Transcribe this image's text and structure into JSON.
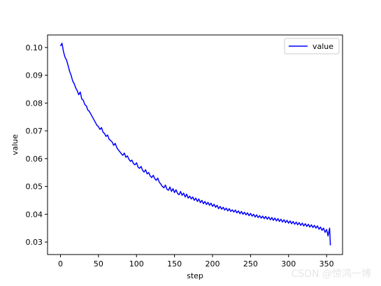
{
  "chart_data": {
    "type": "line",
    "title": "",
    "xlabel": "step",
    "ylabel": "value",
    "xlim": [
      -17,
      371
    ],
    "ylim": [
      0.0255,
      0.1045
    ],
    "xticks": [
      0,
      50,
      100,
      150,
      200,
      250,
      300,
      350
    ],
    "yticks": [
      0.03,
      0.04,
      0.05,
      0.06,
      0.07,
      0.08,
      0.09,
      0.1
    ],
    "ytick_labels": [
      "0.03",
      "0.04",
      "0.05",
      "0.06",
      "0.07",
      "0.08",
      "0.09",
      "0.10"
    ],
    "legend": {
      "placement": "top-right"
    },
    "grid": false,
    "series": [
      {
        "name": "value",
        "color": "#0000ff",
        "points": [
          [
            0,
            0.1005
          ],
          [
            2,
            0.1015
          ],
          [
            4,
            0.0985
          ],
          [
            6,
            0.0965
          ],
          [
            8,
            0.0955
          ],
          [
            10,
            0.0935
          ],
          [
            12,
            0.0915
          ],
          [
            14,
            0.09
          ],
          [
            16,
            0.088
          ],
          [
            18,
            0.087
          ],
          [
            20,
            0.0855
          ],
          [
            22,
            0.0845
          ],
          [
            24,
            0.083
          ],
          [
            26,
            0.084
          ],
          [
            28,
            0.0815
          ],
          [
            30,
            0.081
          ],
          [
            32,
            0.0795
          ],
          [
            34,
            0.079
          ],
          [
            36,
            0.0775
          ],
          [
            38,
            0.077
          ],
          [
            40,
            0.076
          ],
          [
            42,
            0.075
          ],
          [
            44,
            0.074
          ],
          [
            46,
            0.073
          ],
          [
            48,
            0.072
          ],
          [
            50,
            0.0715
          ],
          [
            52,
            0.0705
          ],
          [
            54,
            0.0712
          ],
          [
            56,
            0.0695
          ],
          [
            58,
            0.069
          ],
          [
            60,
            0.068
          ],
          [
            62,
            0.0685
          ],
          [
            64,
            0.067
          ],
          [
            66,
            0.0665
          ],
          [
            68,
            0.066
          ],
          [
            70,
            0.0648
          ],
          [
            72,
            0.0655
          ],
          [
            74,
            0.064
          ],
          [
            76,
            0.0632
          ],
          [
            78,
            0.0625
          ],
          [
            80,
            0.0618
          ],
          [
            82,
            0.0612
          ],
          [
            84,
            0.062
          ],
          [
            86,
            0.0605
          ],
          [
            88,
            0.061
          ],
          [
            90,
            0.0598
          ],
          [
            92,
            0.059
          ],
          [
            94,
            0.0595
          ],
          [
            96,
            0.0582
          ],
          [
            98,
            0.0578
          ],
          [
            100,
            0.0585
          ],
          [
            102,
            0.057
          ],
          [
            104,
            0.0565
          ],
          [
            106,
            0.0572
          ],
          [
            108,
            0.0558
          ],
          [
            110,
            0.0552
          ],
          [
            112,
            0.056
          ],
          [
            114,
            0.0545
          ],
          [
            116,
            0.055
          ],
          [
            118,
            0.0538
          ],
          [
            120,
            0.0532
          ],
          [
            122,
            0.054
          ],
          [
            124,
            0.0528
          ],
          [
            126,
            0.0522
          ],
          [
            128,
            0.053
          ],
          [
            130,
            0.0515
          ],
          [
            132,
            0.0508
          ],
          [
            134,
            0.05
          ],
          [
            136,
            0.0495
          ],
          [
            138,
            0.0505
          ],
          [
            140,
            0.049
          ],
          [
            142,
            0.0486
          ],
          [
            144,
            0.0498
          ],
          [
            146,
            0.0482
          ],
          [
            148,
            0.0492
          ],
          [
            150,
            0.0478
          ],
          [
            152,
            0.0488
          ],
          [
            154,
            0.0475
          ],
          [
            156,
            0.047
          ],
          [
            158,
            0.0482
          ],
          [
            160,
            0.0468
          ],
          [
            162,
            0.0476
          ],
          [
            164,
            0.0462
          ],
          [
            166,
            0.0472
          ],
          [
            168,
            0.0458
          ],
          [
            170,
            0.0465
          ],
          [
            172,
            0.0455
          ],
          [
            174,
            0.0462
          ],
          [
            176,
            0.045
          ],
          [
            178,
            0.0458
          ],
          [
            180,
            0.0446
          ],
          [
            182,
            0.0455
          ],
          [
            184,
            0.0442
          ],
          [
            186,
            0.045
          ],
          [
            188,
            0.0438
          ],
          [
            190,
            0.0446
          ],
          [
            192,
            0.0435
          ],
          [
            194,
            0.0443
          ],
          [
            196,
            0.0432
          ],
          [
            198,
            0.044
          ],
          [
            200,
            0.0428
          ],
          [
            202,
            0.0436
          ],
          [
            204,
            0.0425
          ],
          [
            206,
            0.0432
          ],
          [
            208,
            0.042
          ],
          [
            210,
            0.0428
          ],
          [
            212,
            0.0418
          ],
          [
            214,
            0.0425
          ],
          [
            216,
            0.0415
          ],
          [
            218,
            0.0422
          ],
          [
            220,
            0.0412
          ],
          [
            222,
            0.042
          ],
          [
            224,
            0.041
          ],
          [
            226,
            0.0416
          ],
          [
            228,
            0.0408
          ],
          [
            230,
            0.0415
          ],
          [
            232,
            0.0405
          ],
          [
            234,
            0.0412
          ],
          [
            236,
            0.0402
          ],
          [
            238,
            0.041
          ],
          [
            240,
            0.04
          ],
          [
            242,
            0.0407
          ],
          [
            244,
            0.0398
          ],
          [
            246,
            0.0405
          ],
          [
            248,
            0.0395
          ],
          [
            250,
            0.0403
          ],
          [
            252,
            0.0393
          ],
          [
            254,
            0.04
          ],
          [
            256,
            0.039
          ],
          [
            258,
            0.0398
          ],
          [
            260,
            0.0388
          ],
          [
            262,
            0.0395
          ],
          [
            264,
            0.0386
          ],
          [
            266,
            0.0393
          ],
          [
            268,
            0.0384
          ],
          [
            270,
            0.0392
          ],
          [
            272,
            0.0382
          ],
          [
            274,
            0.039
          ],
          [
            276,
            0.038
          ],
          [
            278,
            0.0388
          ],
          [
            280,
            0.0378
          ],
          [
            282,
            0.0386
          ],
          [
            284,
            0.0376
          ],
          [
            286,
            0.0384
          ],
          [
            288,
            0.0374
          ],
          [
            290,
            0.0382
          ],
          [
            292,
            0.0372
          ],
          [
            294,
            0.038
          ],
          [
            296,
            0.037
          ],
          [
            298,
            0.0378
          ],
          [
            300,
            0.0368
          ],
          [
            302,
            0.0376
          ],
          [
            304,
            0.0366
          ],
          [
            306,
            0.0374
          ],
          [
            308,
            0.0364
          ],
          [
            310,
            0.0372
          ],
          [
            312,
            0.0362
          ],
          [
            314,
            0.037
          ],
          [
            316,
            0.036
          ],
          [
            318,
            0.0368
          ],
          [
            320,
            0.0358
          ],
          [
            322,
            0.0366
          ],
          [
            324,
            0.0356
          ],
          [
            326,
            0.0364
          ],
          [
            328,
            0.0354
          ],
          [
            330,
            0.0362
          ],
          [
            332,
            0.0352
          ],
          [
            334,
            0.036
          ],
          [
            336,
            0.035
          ],
          [
            338,
            0.0358
          ],
          [
            340,
            0.0346
          ],
          [
            342,
            0.0354
          ],
          [
            344,
            0.0342
          ],
          [
            346,
            0.035
          ],
          [
            348,
            0.0335
          ],
          [
            350,
            0.0345
          ],
          [
            352,
            0.0322
          ],
          [
            354,
            0.035
          ],
          [
            355,
            0.0288
          ]
        ]
      }
    ]
  },
  "watermark": {
    "text": "CSDN @惊鸿一博"
  }
}
